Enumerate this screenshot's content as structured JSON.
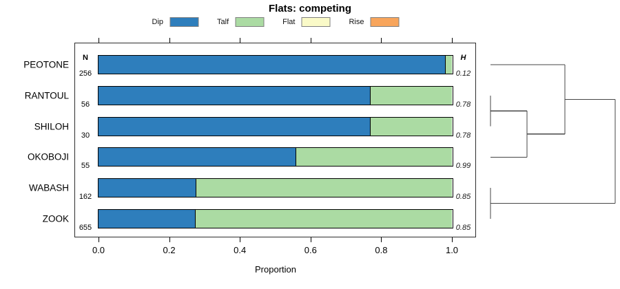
{
  "chart_data": {
    "type": "bar",
    "orientation": "horizontal-stacked",
    "title": "Flats: competing",
    "xlabel": "Proportion",
    "xlim": [
      0.0,
      1.0
    ],
    "x_ticks": [
      "0.0",
      "0.2",
      "0.4",
      "0.6",
      "0.8",
      "1.0"
    ],
    "x_tick_values": [
      0.0,
      0.2,
      0.4,
      0.6,
      0.8,
      1.0
    ],
    "grid": false,
    "legend_position": "top",
    "n_header": "N",
    "h_header": "H",
    "legend": [
      {
        "label": "Dip",
        "color": "#2E7EBC"
      },
      {
        "label": "Talf",
        "color": "#ABDBA3"
      },
      {
        "label": "Flat",
        "color": "#FAFAC8"
      },
      {
        "label": "Rise",
        "color": "#F8A55C"
      }
    ],
    "categories": [
      "PEOTONE",
      "RANTOUL",
      "SHILOH",
      "OKOBOJI",
      "WABASH",
      "ZOOK"
    ],
    "rows": [
      {
        "label": "PEOTONE",
        "n": "256",
        "h": "0.12",
        "proportions": {
          "Dip": 0.982,
          "Talf": 0.018,
          "Flat": 0,
          "Rise": 0
        }
      },
      {
        "label": "RANTOUL",
        "n": "56",
        "h": "0.78",
        "proportions": {
          "Dip": 0.77,
          "Talf": 0.23,
          "Flat": 0,
          "Rise": 0
        }
      },
      {
        "label": "SHILOH",
        "n": "30",
        "h": "0.78",
        "proportions": {
          "Dip": 0.77,
          "Talf": 0.23,
          "Flat": 0,
          "Rise": 0
        }
      },
      {
        "label": "OKOBOJI",
        "n": "55",
        "h": "0.99",
        "proportions": {
          "Dip": 0.56,
          "Talf": 0.44,
          "Flat": 0,
          "Rise": 0
        }
      },
      {
        "label": "WABASH",
        "n": "162",
        "h": "0.85",
        "proportions": {
          "Dip": 0.278,
          "Talf": 0.722,
          "Flat": 0,
          "Rise": 0
        }
      },
      {
        "label": "ZOOK",
        "n": "655",
        "h": "0.85",
        "proportions": {
          "Dip": 0.275,
          "Talf": 0.725,
          "Flat": 0,
          "Rise": 0
        }
      }
    ],
    "dendrogram": {
      "newick": "((PEOTONE,((RANTOUL,SHILOH),OKOBOJI)),(WABASH,ZOOK));",
      "line_color": "#444444",
      "tree": {
        "h": 1.0,
        "children": [
          {
            "h": 0.597,
            "children": [
              {
                "leaf": "PEOTONE"
              },
              {
                "h": 0.293,
                "children": [
                  {
                    "h": 0.0,
                    "children": [
                      {
                        "leaf": "RANTOUL"
                      },
                      {
                        "leaf": "SHILOH"
                      }
                    ]
                  },
                  {
                    "leaf": "OKOBOJI"
                  }
                ]
              }
            ]
          },
          {
            "h": 0.0,
            "children": [
              {
                "leaf": "WABASH"
              },
              {
                "leaf": "ZOOK"
              }
            ]
          }
        ]
      }
    }
  }
}
